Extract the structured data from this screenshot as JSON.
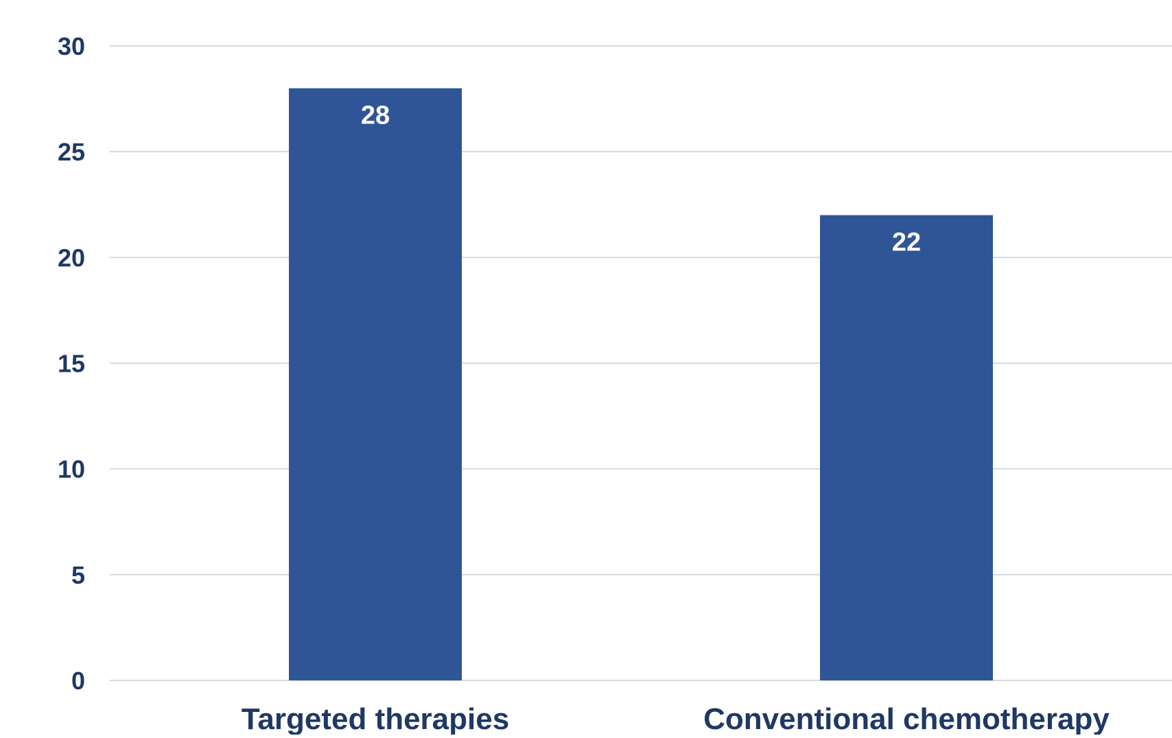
{
  "colors": {
    "bar": "#2F5597",
    "grid": "#D9D9D9",
    "text": "#1F3864",
    "label": "#FFFFFF",
    "background": "#FFFFFF"
  },
  "chart_data": {
    "type": "bar",
    "title": "",
    "xlabel": "",
    "ylabel": "",
    "categories": [
      "Targeted therapies",
      "Conventional chemotherapy"
    ],
    "values": [
      28,
      22
    ],
    "data_labels": [
      "28",
      "22"
    ],
    "ylim": [
      0,
      30
    ],
    "yticks": [
      0,
      5,
      10,
      15,
      20,
      25,
      30
    ],
    "ytick_labels": [
      "0",
      "5",
      "10",
      "15",
      "20",
      "25",
      "30"
    ],
    "grid": true,
    "legend": "none",
    "data_label_position": "inside-top"
  }
}
